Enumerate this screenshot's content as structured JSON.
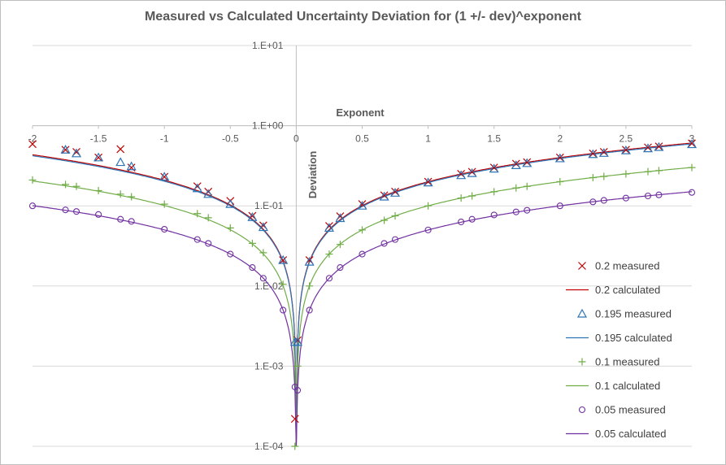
{
  "chart_data": {
    "type": "scatter",
    "title": "Measured vs Calculated Uncertainty Deviation for (1 +/- dev)^exponent",
    "xlabel": "Exponent",
    "ylabel": "Deviation",
    "xlim": [
      -2,
      3
    ],
    "ylim": [
      0.0001,
      10
    ],
    "y_scale": "log",
    "x_ticks": [
      "-2",
      "-1.5",
      "-1",
      "-0.5",
      "0",
      "0.5",
      "1",
      "1.5",
      "2",
      "2.5",
      "3"
    ],
    "y_ticks": [
      "1.E-04",
      "1.E-03",
      "1.E-02",
      "1.E-01",
      "1.E+00",
      "1.E+01"
    ],
    "x_axis_crosses_at": 1,
    "legend_position": "right",
    "series": [
      {
        "name": "0.2 measured",
        "kind": "marker",
        "marker": "x",
        "color": "#c00000",
        "dev": 0.2,
        "x": [
          -2,
          -1.75,
          -1.667,
          -1.5,
          -1.333,
          -1.25,
          -1,
          -0.75,
          -0.667,
          -0.5,
          -0.333,
          -0.25,
          -0.1,
          -0.01,
          0.01,
          0.1,
          0.25,
          0.333,
          0.5,
          0.667,
          0.75,
          1,
          1.25,
          1.333,
          1.5,
          1.667,
          1.75,
          2,
          2.25,
          2.333,
          2.5,
          2.667,
          2.75,
          3
        ],
        "y": [
          0.59,
          0.5,
          0.47,
          0.4,
          0.51,
          0.3,
          0.23,
          0.175,
          0.15,
          0.115,
          0.075,
          0.057,
          0.021,
          0.00022,
          0.0021,
          0.021,
          0.056,
          0.074,
          0.105,
          0.135,
          0.15,
          0.2,
          0.25,
          0.265,
          0.3,
          0.335,
          0.35,
          0.4,
          0.45,
          0.47,
          0.5,
          0.535,
          0.55,
          0.6
        ]
      },
      {
        "name": "0.2 calculated",
        "kind": "line",
        "color": "#c00000",
        "dev": 0.2,
        "cap": 5.5
      },
      {
        "name": "0.195 measured",
        "kind": "marker",
        "marker": "triangle",
        "color": "#2e75b6",
        "dev": 0.195,
        "x": [
          -1.75,
          -1.667,
          -1.5,
          -1.333,
          -1.25,
          -1,
          -0.75,
          -0.667,
          -0.5,
          -0.333,
          -0.25,
          -0.1,
          -0.01,
          0.01,
          0.1,
          0.25,
          0.333,
          0.5,
          0.667,
          0.75,
          1,
          1.25,
          1.333,
          1.5,
          1.667,
          1.75,
          2,
          2.25,
          2.333,
          2.5,
          2.667,
          2.75,
          3
        ],
        "y": [
          0.5,
          0.45,
          0.4,
          0.35,
          0.31,
          0.23,
          0.165,
          0.14,
          0.105,
          0.072,
          0.054,
          0.021,
          0.002,
          0.002,
          0.02,
          0.053,
          0.07,
          0.1,
          0.13,
          0.145,
          0.195,
          0.24,
          0.255,
          0.29,
          0.32,
          0.34,
          0.39,
          0.44,
          0.455,
          0.49,
          0.52,
          0.54,
          0.585
        ]
      },
      {
        "name": "0.195 calculated",
        "kind": "line",
        "color": "#2e75b6",
        "dev": 0.195,
        "cap": 0.75
      },
      {
        "name": "0.1 measured",
        "kind": "marker",
        "marker": "plus",
        "color": "#70ad47",
        "dev": 0.1,
        "x": [
          -2,
          -1.75,
          -1.667,
          -1.5,
          -1.333,
          -1.25,
          -1,
          -0.75,
          -0.667,
          -0.5,
          -0.333,
          -0.25,
          -0.1,
          -0.01,
          0.01,
          0.1,
          0.25,
          0.333,
          0.5,
          0.667,
          0.75,
          1,
          1.25,
          1.333,
          1.5,
          1.667,
          1.75,
          2,
          2.25,
          2.333,
          2.5,
          2.667,
          2.75,
          3
        ],
        "y": [
          0.21,
          0.185,
          0.175,
          0.155,
          0.14,
          0.13,
          0.105,
          0.08,
          0.071,
          0.053,
          0.034,
          0.026,
          0.0105,
          0.0001,
          0.001,
          0.01,
          0.025,
          0.033,
          0.05,
          0.066,
          0.075,
          0.1,
          0.125,
          0.133,
          0.15,
          0.167,
          0.175,
          0.2,
          0.225,
          0.233,
          0.25,
          0.267,
          0.275,
          0.3
        ]
      },
      {
        "name": "0.1 calculated",
        "kind": "line",
        "color": "#70ad47",
        "dev": 0.1
      },
      {
        "name": "0.05 measured",
        "kind": "marker",
        "marker": "circle",
        "color": "#7030a0",
        "dev": 0.05,
        "x": [
          -2,
          -1.75,
          -1.667,
          -1.5,
          -1.333,
          -1.25,
          -1,
          -0.75,
          -0.667,
          -0.5,
          -0.333,
          -0.25,
          -0.1,
          -0.01,
          0.01,
          0.1,
          0.25,
          0.333,
          0.5,
          0.667,
          0.75,
          1,
          1.25,
          1.333,
          1.5,
          1.667,
          1.75,
          2,
          2.25,
          2.333,
          2.5,
          2.667,
          2.75,
          3
        ],
        "y": [
          0.1,
          0.089,
          0.085,
          0.078,
          0.068,
          0.064,
          0.051,
          0.038,
          0.034,
          0.025,
          0.017,
          0.0125,
          0.005,
          0.00055,
          0.0005,
          0.005,
          0.0125,
          0.017,
          0.025,
          0.034,
          0.038,
          0.05,
          0.063,
          0.068,
          0.077,
          0.084,
          0.088,
          0.1,
          0.112,
          0.117,
          0.125,
          0.133,
          0.137,
          0.147
        ]
      },
      {
        "name": "0.05 calculated",
        "kind": "line",
        "color": "#7030a0",
        "dev": 0.05
      }
    ]
  }
}
